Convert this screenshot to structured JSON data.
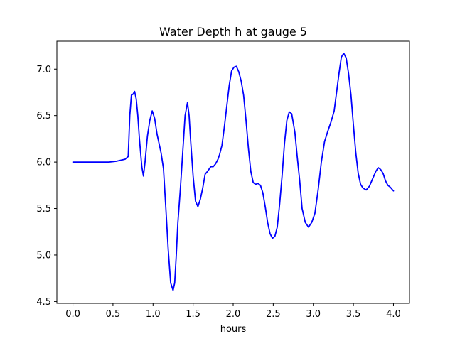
{
  "chart_data": {
    "type": "line",
    "title": "Water Depth h at gauge 5",
    "xlabel": "hours",
    "ylabel": "",
    "xlim": [
      -0.2,
      4.2
    ],
    "ylim": [
      4.48,
      7.3
    ],
    "xticks": [
      0.0,
      0.5,
      1.0,
      1.5,
      2.0,
      2.5,
      3.0,
      3.5,
      4.0
    ],
    "xtick_labels": [
      "0.0",
      "0.5",
      "1.0",
      "1.5",
      "2.0",
      "2.5",
      "3.0",
      "3.5",
      "4.0"
    ],
    "yticks": [
      4.5,
      5.0,
      5.5,
      6.0,
      6.5,
      7.0
    ],
    "ytick_labels": [
      "4.5",
      "5.0",
      "5.5",
      "6.0",
      "6.5",
      "7.0"
    ],
    "grid": false,
    "series": [
      {
        "color": "#0000ff",
        "x": [
          0.0,
          0.2,
          0.45,
          0.55,
          0.65,
          0.69,
          0.71,
          0.73,
          0.75,
          0.77,
          0.79,
          0.81,
          0.83,
          0.86,
          0.88,
          0.9,
          0.93,
          0.96,
          0.99,
          1.02,
          1.05,
          1.07,
          1.1,
          1.13,
          1.16,
          1.19,
          1.22,
          1.25,
          1.27,
          1.29,
          1.31,
          1.34,
          1.37,
          1.4,
          1.43,
          1.45,
          1.47,
          1.5,
          1.53,
          1.56,
          1.59,
          1.62,
          1.65,
          1.68,
          1.72,
          1.75,
          1.78,
          1.81,
          1.83,
          1.86,
          1.89,
          1.92,
          1.95,
          1.98,
          2.01,
          2.04,
          2.07,
          2.1,
          2.13,
          2.16,
          2.19,
          2.22,
          2.25,
          2.28,
          2.31,
          2.34,
          2.37,
          2.4,
          2.43,
          2.46,
          2.49,
          2.52,
          2.55,
          2.58,
          2.61,
          2.64,
          2.67,
          2.7,
          2.73,
          2.77,
          2.8,
          2.83,
          2.86,
          2.9,
          2.94,
          2.98,
          3.02,
          3.06,
          3.1,
          3.14,
          3.18,
          3.22,
          3.26,
          3.29,
          3.32,
          3.35,
          3.38,
          3.41,
          3.44,
          3.47,
          3.5,
          3.53,
          3.56,
          3.59,
          3.62,
          3.66,
          3.7,
          3.74,
          3.78,
          3.81,
          3.84,
          3.87,
          3.9,
          3.93,
          3.96,
          4.0
        ],
        "y": [
          6.0,
          6.0,
          6.0,
          6.01,
          6.03,
          6.06,
          6.5,
          6.72,
          6.73,
          6.76,
          6.68,
          6.5,
          6.25,
          5.95,
          5.85,
          6.0,
          6.28,
          6.45,
          6.55,
          6.47,
          6.3,
          6.22,
          6.1,
          5.93,
          5.5,
          5.05,
          4.7,
          4.62,
          4.7,
          5.0,
          5.35,
          5.7,
          6.1,
          6.5,
          6.64,
          6.5,
          6.22,
          5.85,
          5.58,
          5.52,
          5.6,
          5.72,
          5.87,
          5.9,
          5.95,
          5.95,
          5.98,
          6.03,
          6.08,
          6.18,
          6.38,
          6.6,
          6.82,
          6.98,
          7.02,
          7.03,
          6.97,
          6.87,
          6.72,
          6.45,
          6.15,
          5.9,
          5.78,
          5.76,
          5.77,
          5.75,
          5.67,
          5.52,
          5.35,
          5.23,
          5.18,
          5.2,
          5.3,
          5.55,
          5.85,
          6.2,
          6.45,
          6.54,
          6.52,
          6.32,
          6.05,
          5.8,
          5.5,
          5.35,
          5.3,
          5.35,
          5.45,
          5.7,
          6.0,
          6.22,
          6.33,
          6.43,
          6.55,
          6.75,
          6.95,
          7.13,
          7.17,
          7.12,
          6.95,
          6.72,
          6.4,
          6.1,
          5.88,
          5.76,
          5.72,
          5.7,
          5.74,
          5.82,
          5.9,
          5.94,
          5.92,
          5.88,
          5.8,
          5.75,
          5.73,
          5.69
        ]
      }
    ]
  }
}
